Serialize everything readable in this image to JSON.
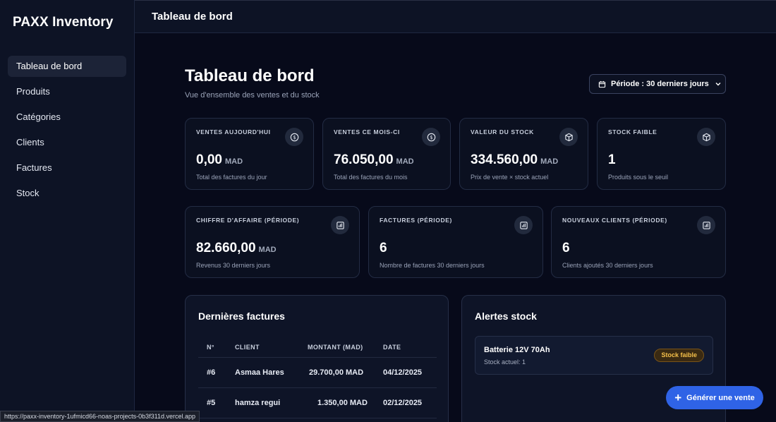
{
  "app": {
    "brand": "PAXX Inventory",
    "topbar_title": "Tableau de bord"
  },
  "sidebar": {
    "items": [
      {
        "label": "Tableau de bord",
        "active": true
      },
      {
        "label": "Produits",
        "active": false
      },
      {
        "label": "Catégories",
        "active": false
      },
      {
        "label": "Clients",
        "active": false
      },
      {
        "label": "Factures",
        "active": false
      },
      {
        "label": "Stock",
        "active": false
      }
    ]
  },
  "header": {
    "title": "Tableau de bord",
    "subtitle": "Vue d'ensemble des ventes et du stock",
    "period_label": "Période : 30 derniers jours"
  },
  "stats_row1": [
    {
      "label": "VENTES AUJOURD'HUI",
      "value": "0,00",
      "unit": "MAD",
      "desc": "Total des factures du jour",
      "icon": "dollar-circle-icon"
    },
    {
      "label": "VENTES CE MOIS-CI",
      "value": "76.050,00",
      "unit": "MAD",
      "desc": "Total des factures du mois",
      "icon": "dollar-circle-icon"
    },
    {
      "label": "VALEUR DU STOCK",
      "value": "334.560,00",
      "unit": "MAD",
      "desc": "Prix de vente × stock actuel",
      "icon": "box-icon"
    },
    {
      "label": "STOCK FAIBLE",
      "value": "1",
      "unit": "",
      "desc": "Produits sous le seuil",
      "icon": "box-icon"
    }
  ],
  "stats_row2": [
    {
      "label": "CHIFFRE D'AFFAIRE (PÉRIODE)",
      "value": "82.660,00",
      "unit": "MAD",
      "desc": "Revenus 30 derniers jours",
      "icon": "bar-chart-icon"
    },
    {
      "label": "FACTURES (PÉRIODE)",
      "value": "6",
      "unit": "",
      "desc": "Nombre de factures 30 derniers jours",
      "icon": "bar-chart-icon"
    },
    {
      "label": "NOUVEAUX CLIENTS (PÉRIODE)",
      "value": "6",
      "unit": "",
      "desc": "Clients ajoutés 30 derniers jours",
      "icon": "bar-chart-icon"
    }
  ],
  "invoices": {
    "title": "Dernières factures",
    "headers": [
      "N°",
      "CLIENT",
      "MONTANT (MAD)",
      "DATE"
    ],
    "rows": [
      {
        "num": "#6",
        "client": "Asmaa Hares",
        "amount": "29.700,00 MAD",
        "date": "04/12/2025"
      },
      {
        "num": "#5",
        "client": "hamza regui",
        "amount": "1.350,00 MAD",
        "date": "02/12/2025"
      }
    ]
  },
  "alerts": {
    "title": "Alertes stock",
    "items": [
      {
        "name": "Batterie 12V 70Ah",
        "stock": "Stock actuel: 1",
        "badge": "Stock faible"
      }
    ]
  },
  "fab": {
    "label": "Générer une vente"
  },
  "status_url": "https://paxx-inventory-1ufmicd66-noas-projects-0b3f311d.vercel.app",
  "colors": {
    "background": "#070a1a",
    "sidebar": "#0d1325",
    "accent": "#2f63e6",
    "warning": "#f5c04a"
  }
}
